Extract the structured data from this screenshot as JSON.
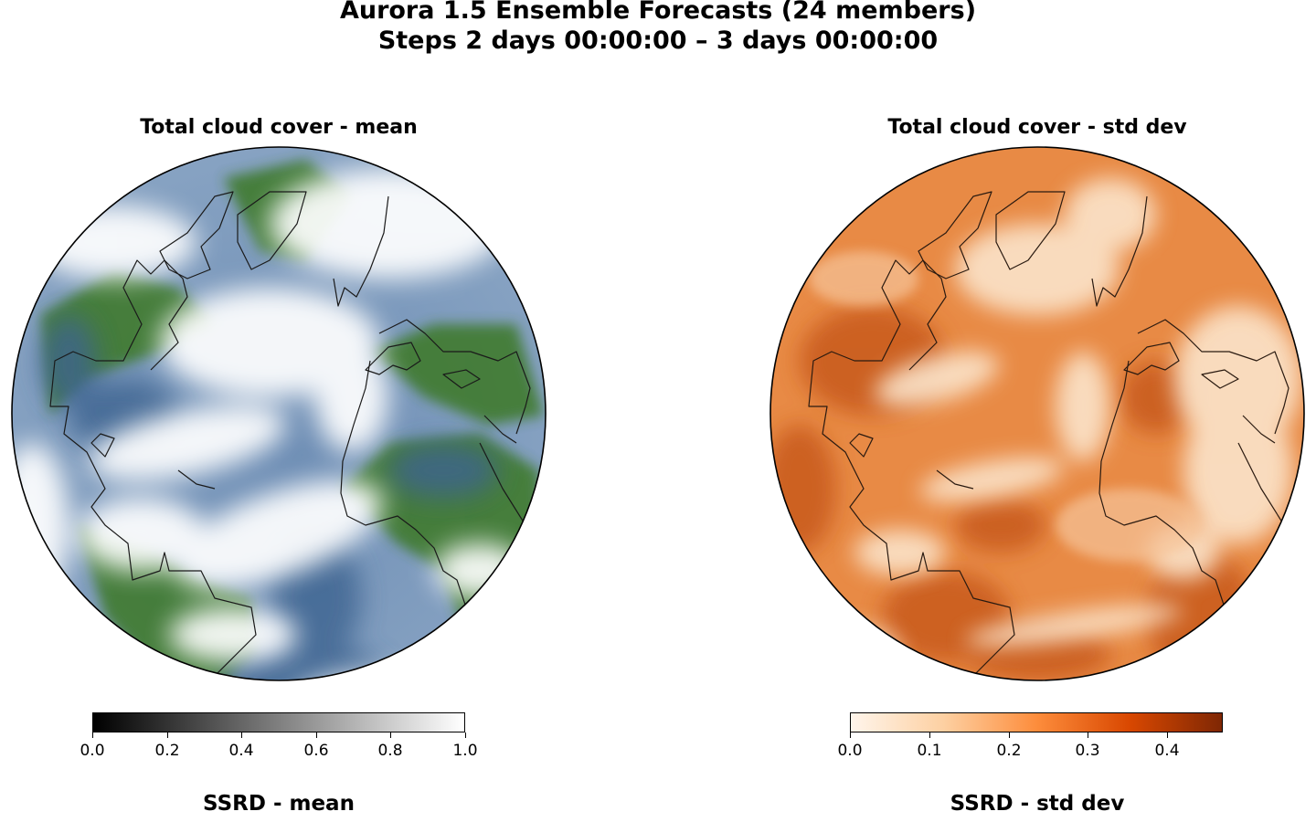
{
  "figure": {
    "title_line1": "Aurora 1.5 Ensemble Forecasts (24 members)",
    "title_line2": "Steps 2 days 00:00:00 – 3 days 00:00:00"
  },
  "panels": [
    {
      "title": "Total cloud cover - mean",
      "colorbar": {
        "colormap": "grayscale",
        "colors": [
          "#000000",
          "#ffffff"
        ],
        "range": [
          0.0,
          1.0
        ],
        "ticks": [
          "0.0",
          "0.2",
          "0.4",
          "0.6",
          "0.8",
          "1.0"
        ]
      },
      "palette": {
        "ocean": "#4a6f99",
        "land": "#3f7a2d",
        "clear": "#ffffff"
      }
    },
    {
      "title": "Total cloud cover - std dev",
      "colorbar": {
        "colormap": "oranges",
        "colors": [
          "#fff5eb",
          "#fdd0a2",
          "#fd8d3c",
          "#d94801",
          "#7f2704"
        ],
        "range": [
          0.0,
          0.47
        ],
        "ticks": [
          "0.0",
          "0.1",
          "0.2",
          "0.3",
          "0.4"
        ]
      },
      "palette": {
        "low": "#fbe2c8",
        "mid": "#e98a3e",
        "high": "#c0561a"
      }
    }
  ],
  "next_row_titles": [
    "SSRD - mean",
    "SSRD - std dev"
  ],
  "chart_data": [
    {
      "type": "heatmap",
      "title": "Total cloud cover - mean",
      "projection": "orthographic",
      "colorbar_range": [
        0.0,
        1.0
      ],
      "colorbar_ticks": [
        0.0,
        0.2,
        0.4,
        0.6,
        0.8,
        1.0
      ]
    },
    {
      "type": "heatmap",
      "title": "Total cloud cover - std dev",
      "projection": "orthographic",
      "colorbar_range": [
        0.0,
        0.47
      ],
      "colorbar_ticks": [
        0.0,
        0.1,
        0.2,
        0.3,
        0.4
      ]
    }
  ]
}
